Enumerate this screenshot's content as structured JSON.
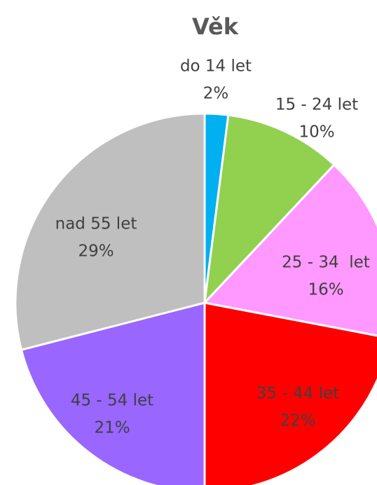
{
  "chart_data": {
    "type": "pie",
    "title": "Věk",
    "categories": [
      "do 14 let",
      "15 - 24 let",
      "25 - 34  let",
      "35 - 44 let",
      "45 - 54 let",
      "nad 55 let"
    ],
    "values": [
      2,
      10,
      16,
      22,
      21,
      29
    ],
    "value_labels": [
      "2%",
      "10%",
      "16%",
      "22%",
      "21%",
      "29%"
    ],
    "colors": [
      "#00b0f0",
      "#92d050",
      "#ff99ff",
      "#ff0000",
      "#9966ff",
      "#bfbfbf"
    ]
  }
}
